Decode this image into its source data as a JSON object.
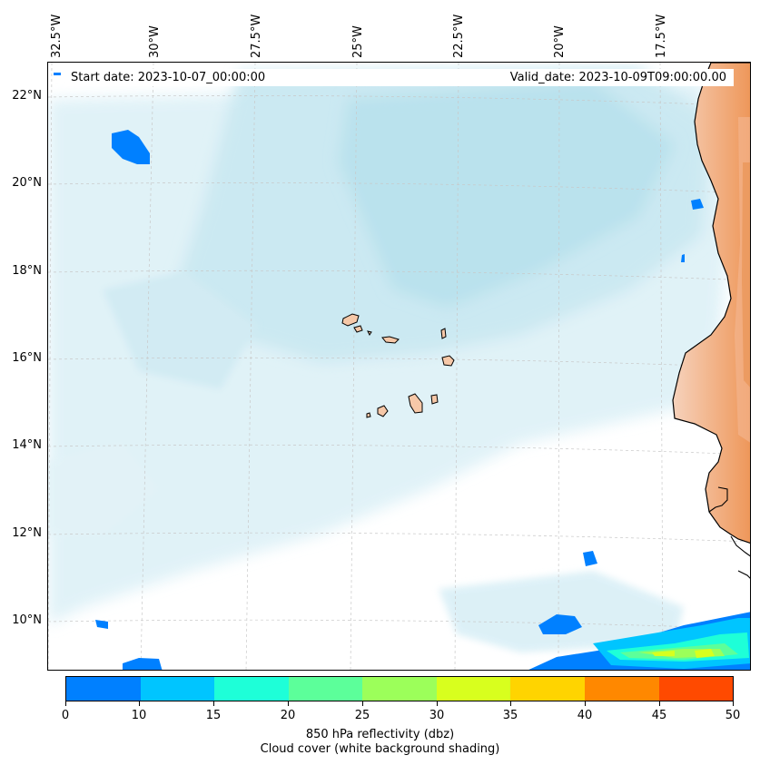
{
  "map": {
    "start_date": "Start date: 2023-10-07_00:00:00",
    "valid_date": "Valid_date: 2023-10-09T09:00:00.00",
    "longitude_labels": [
      "32.5°W",
      "30°W",
      "27.5°W",
      "25°W",
      "22.5°W",
      "20°W",
      "17.5°W"
    ],
    "latitude_labels": [
      "22°N",
      "20°N",
      "18°N",
      "16°N",
      "14°N",
      "12°N",
      "10°N"
    ],
    "extent": {
      "lon_min": -32.6,
      "lon_max": -15.4,
      "lat_min": 8.9,
      "lat_max": 22.8
    },
    "colors": {
      "land": "#f6c8a8",
      "land_dark": "#ef9a5e",
      "cloud": "#a9dbe9",
      "grid": "#c8c8c8"
    }
  },
  "colorbar": {
    "title": "850 hPa reflectivity (dbz)",
    "subtitle": "Cloud cover (white background shading)",
    "ticks": [
      "0",
      "10",
      "15",
      "20",
      "25",
      "30",
      "35",
      "40",
      "45",
      "50"
    ],
    "colors": [
      "#0080ff",
      "#00c5ff",
      "#1effd8",
      "#5cff9a",
      "#9cff5a",
      "#d8ff1e",
      "#ffd400",
      "#ff8800",
      "#ff4a00"
    ]
  }
}
